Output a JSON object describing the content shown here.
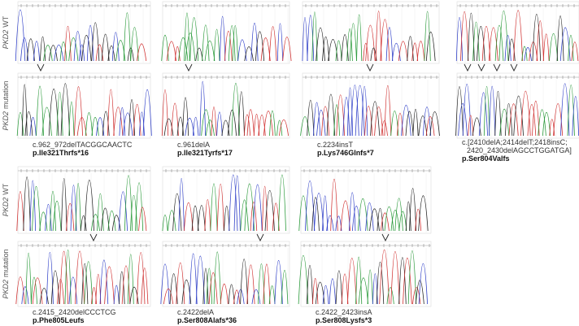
{
  "rows": [
    {
      "wt_label": {
        "gene": "PKD2",
        "suffix": "WT"
      },
      "mut_label": {
        "gene": "PKD2",
        "suffix": "mutation"
      },
      "panels": [
        {
          "cdna": [
            "c.962_972delTACGGCAACTC"
          ],
          "protein": "p.Ile321Thrfs*16"
        },
        {
          "cdna": [
            "c.961delA"
          ],
          "protein": "p.Ile321Tyrfs*17"
        },
        {
          "cdna": [
            "c.2234insT"
          ],
          "protein": "p.Lys746Glnfs*7"
        },
        {
          "cdna": [
            "c.[2410delA;2414delT;2418insC;",
            "2420_2430delAGCCTGGATGA]"
          ],
          "protein": "p.Ser804Valfs"
        }
      ]
    },
    {
      "wt_label": {
        "gene": "PKD2",
        "suffix": "WT"
      },
      "mut_label": {
        "gene": "PKD2",
        "suffix": "mutation"
      },
      "panels": [
        {
          "cdna": [
            "c.2415_2420delCCCTCG"
          ],
          "protein": "p.Phe805Leufs"
        },
        {
          "cdna": [
            "c.2422delA"
          ],
          "protein": "p.Ser808Alafs*36"
        },
        {
          "cdna": [
            "c.2422_2423insA"
          ],
          "protein": "p.Ser808Lysfs*3"
        }
      ]
    }
  ]
}
